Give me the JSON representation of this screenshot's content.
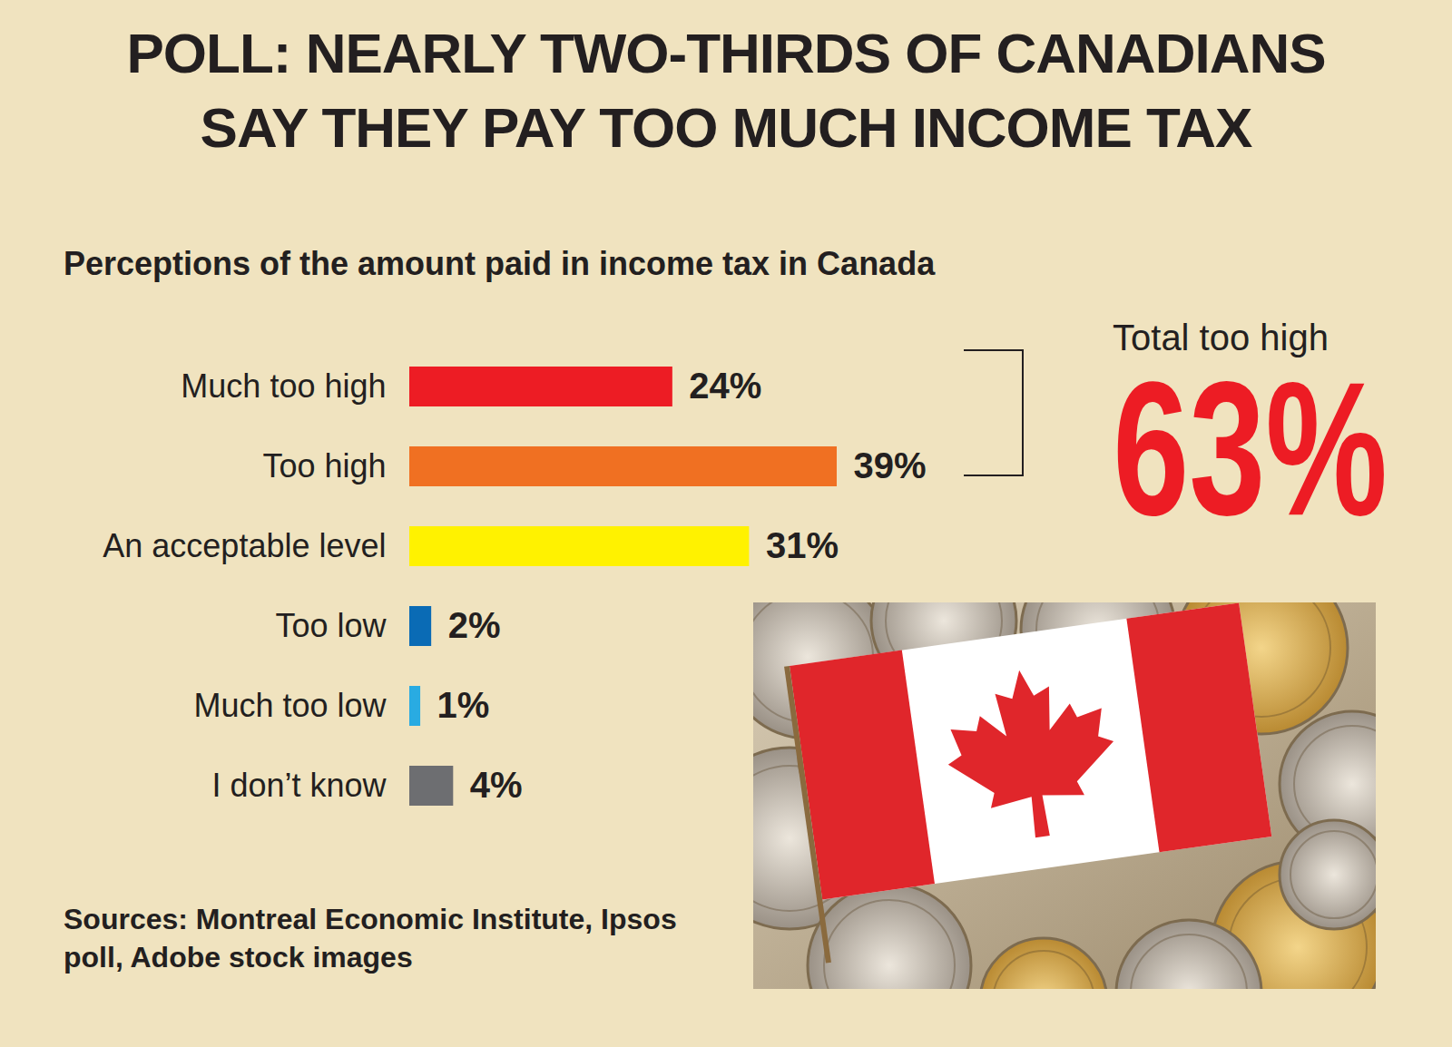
{
  "chart_data": {
    "type": "bar",
    "title": "POLL: NEARLY TWO-THIRDS OF CANADIANS SAY THEY PAY TOO MUCH INCOME TAX",
    "subtitle": "Perceptions of the amount paid in income tax in Canada",
    "orientation": "horizontal",
    "categories": [
      "Much too high",
      "Too high",
      "An acceptable level",
      "Too low",
      "Much too low",
      "I don’t know"
    ],
    "values": [
      24,
      39,
      31,
      2,
      1,
      4
    ],
    "value_labels": [
      "24%",
      "39%",
      "31%",
      "2%",
      "1%",
      "4%"
    ],
    "colors": [
      "#ed1c24",
      "#f07022",
      "#fff200",
      "#0a6bb5",
      "#29abe2",
      "#6d6e71"
    ],
    "data_labels": true,
    "tick_labels": "y",
    "annotation": {
      "label": "Total too high",
      "text": "63%"
    },
    "source": "Sources: Montreal Economic Institute, Ipsos poll, Adobe stock images"
  }
}
